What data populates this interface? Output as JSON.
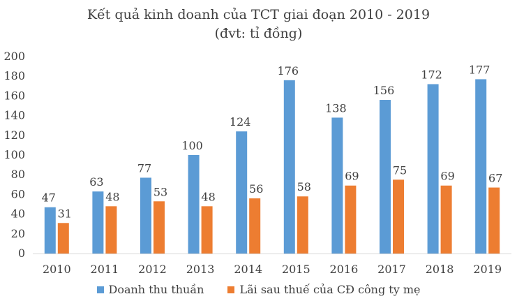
{
  "chart_data": {
    "type": "bar",
    "title": "Kết quả kinh doanh của TCT giai đoạn 2010 - 2019",
    "subtitle": "(đvt: tỉ đồng)",
    "xlabel": "",
    "ylabel": "",
    "categories": [
      "2010",
      "2011",
      "2012",
      "2013",
      "2014",
      "2015",
      "2016",
      "2017",
      "2018",
      "2019"
    ],
    "series": [
      {
        "name": "Doanh thu thuần",
        "color": "#5b9bd5",
        "values": [
          47,
          63,
          77,
          100,
          124,
          176,
          138,
          156,
          172,
          177
        ]
      },
      {
        "name": "Lãi sau thuế của CĐ công ty mẹ",
        "color": "#ed7d31",
        "values": [
          31,
          48,
          53,
          48,
          56,
          58,
          69,
          75,
          69,
          67
        ]
      }
    ],
    "ylim": [
      0,
      200
    ],
    "yticks": [
      0,
      20,
      40,
      60,
      80,
      100,
      120,
      140,
      160,
      180,
      200
    ],
    "grid": false,
    "legend": "bottom",
    "data_labels": true
  }
}
